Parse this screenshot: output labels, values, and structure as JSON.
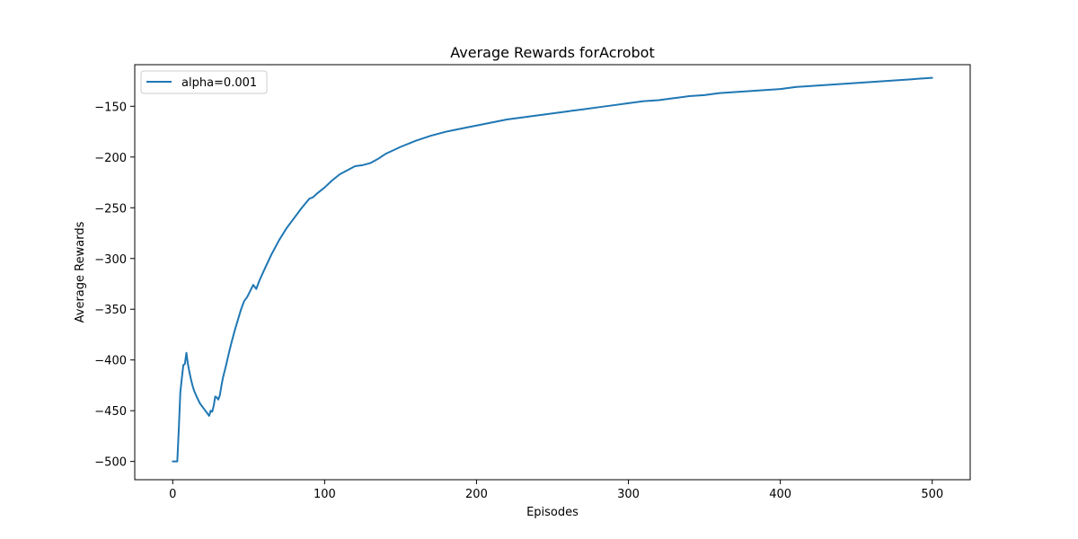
{
  "chart_data": {
    "type": "line",
    "title": "Average Rewards forAcrobot",
    "xlabel": "Episodes",
    "ylabel": "Average Rewards",
    "xlim": [
      -25,
      525
    ],
    "ylim": [
      -518,
      -109
    ],
    "xticks": [
      0,
      100,
      200,
      300,
      400,
      500
    ],
    "yticks": [
      -500,
      -450,
      -400,
      -350,
      -300,
      -250,
      -200,
      -150
    ],
    "grid": false,
    "legend_position": "upper-left",
    "series": [
      {
        "name": "alpha=0.001",
        "color": "#1f77b4",
        "x": [
          0,
          1,
          2,
          3,
          4,
          5,
          6,
          7,
          8,
          9,
          10,
          11,
          12,
          13,
          14,
          16,
          18,
          20,
          22,
          24,
          25,
          26,
          27,
          28,
          29,
          30,
          31,
          32,
          33,
          34,
          35,
          37,
          39,
          41,
          43,
          45,
          47,
          49,
          51,
          53,
          55,
          57,
          60,
          65,
          70,
          75,
          80,
          85,
          90,
          92,
          95,
          100,
          105,
          110,
          115,
          120,
          125,
          130,
          135,
          140,
          150,
          160,
          170,
          180,
          190,
          200,
          210,
          220,
          230,
          240,
          250,
          260,
          270,
          280,
          290,
          300,
          310,
          320,
          330,
          340,
          350,
          360,
          370,
          380,
          390,
          400,
          410,
          420,
          430,
          440,
          450,
          460,
          470,
          480,
          490,
          500
        ],
        "y": [
          -500,
          -500,
          -500,
          -500,
          -468,
          -432,
          -418,
          -405,
          -404,
          -393,
          -404,
          -412,
          -419,
          -425,
          -430,
          -437,
          -443,
          -447,
          -451,
          -455,
          -450,
          -451,
          -445,
          -436,
          -437,
          -439,
          -435,
          -426,
          -418,
          -412,
          -406,
          -393,
          -381,
          -370,
          -360,
          -350,
          -342,
          -338,
          -332,
          -326,
          -330,
          -322,
          -312,
          -296,
          -282,
          -270,
          -260,
          -250,
          -241,
          -240,
          -236,
          -230,
          -223,
          -217,
          -213,
          -209,
          -208,
          -206,
          -202,
          -197,
          -190,
          -184,
          -179,
          -175,
          -172,
          -169,
          -166,
          -163,
          -161,
          -159,
          -157,
          -155,
          -153,
          -151,
          -149,
          -147,
          -145,
          -144,
          -142,
          -140,
          -139,
          -137,
          -136,
          -135,
          -134,
          -133,
          -131,
          -130,
          -129,
          -128,
          -127,
          -126,
          -125,
          -124,
          -123,
          -122
        ]
      }
    ]
  }
}
